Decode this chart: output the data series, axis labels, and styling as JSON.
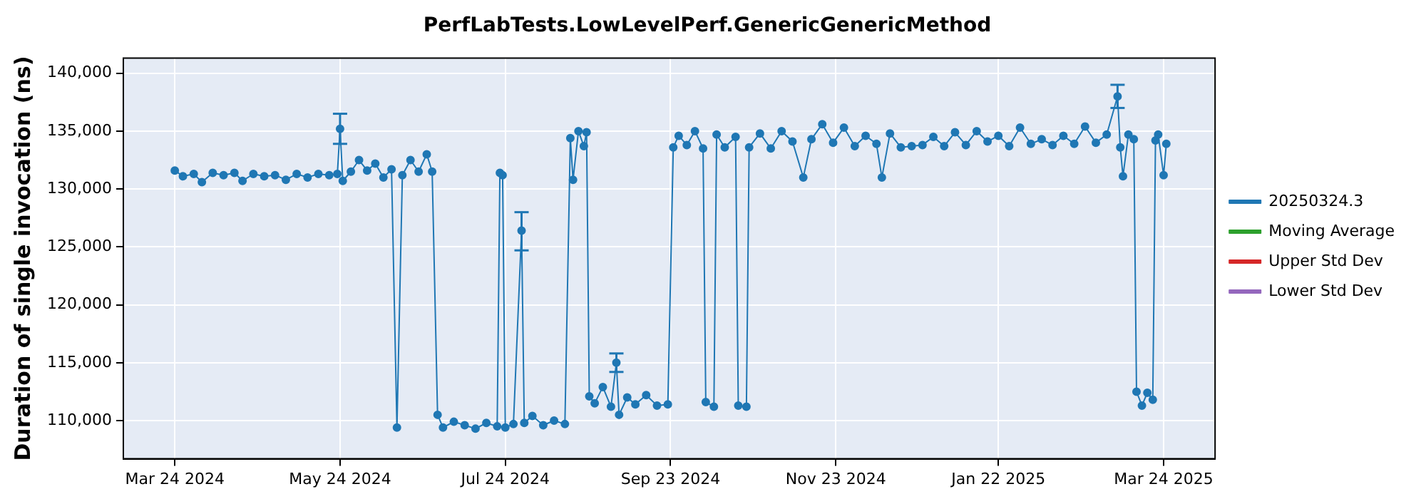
{
  "chart_data": {
    "type": "line",
    "title": "PerfLabTests.LowLevelPerf.GenericGenericMethod",
    "ylabel": "Duration of single invocation (ns)",
    "xlim": [
      "2024-03-05",
      "2025-04-12"
    ],
    "xticks": [
      {
        "value": "2024-03-24",
        "label": "Mar 24 2024"
      },
      {
        "value": "2024-05-24",
        "label": "May 24 2024"
      },
      {
        "value": "2024-07-24",
        "label": "Jul 24 2024"
      },
      {
        "value": "2024-09-23",
        "label": "Sep 23 2024"
      },
      {
        "value": "2024-11-23",
        "label": "Nov 23 2024"
      },
      {
        "value": "2025-01-22",
        "label": "Jan 22 2025"
      },
      {
        "value": "2025-03-24",
        "label": "Mar 24 2025"
      }
    ],
    "ylim": [
      106700,
      141300
    ],
    "yticks": [
      {
        "value": 110000,
        "label": "110,000"
      },
      {
        "value": 115000,
        "label": "115,000"
      },
      {
        "value": 120000,
        "label": "120,000"
      },
      {
        "value": 125000,
        "label": "125,000"
      },
      {
        "value": 130000,
        "label": "130,000"
      },
      {
        "value": 135000,
        "label": "135,000"
      },
      {
        "value": 140000,
        "label": "140,000"
      }
    ],
    "grid": true,
    "legend": "right",
    "marker": "circle",
    "line_style": "solid",
    "series": [
      {
        "name": "20250324.3",
        "color": "#1f77b4",
        "x": [
          "2024-03-24",
          "2024-03-27",
          "2024-03-31",
          "2024-04-03",
          "2024-04-07",
          "2024-04-11",
          "2024-04-15",
          "2024-04-18",
          "2024-04-22",
          "2024-04-26",
          "2024-04-30",
          "2024-05-04",
          "2024-05-08",
          "2024-05-12",
          "2024-05-16",
          "2024-05-20",
          "2024-05-23",
          "2024-05-24",
          "2024-05-25",
          "2024-05-28",
          "2024-05-31",
          "2024-06-03",
          "2024-06-06",
          "2024-06-09",
          "2024-06-12",
          "2024-06-14",
          "2024-06-16",
          "2024-06-19",
          "2024-06-22",
          "2024-06-25",
          "2024-06-27",
          "2024-06-29",
          "2024-07-01",
          "2024-07-05",
          "2024-07-09",
          "2024-07-13",
          "2024-07-17",
          "2024-07-21",
          "2024-07-22",
          "2024-07-23",
          "2024-07-24",
          "2024-07-27",
          "2024-07-30",
          "2024-07-31",
          "2024-08-03",
          "2024-08-07",
          "2024-08-11",
          "2024-08-15",
          "2024-08-17",
          "2024-08-18",
          "2024-08-20",
          "2024-08-22",
          "2024-08-23",
          "2024-08-24",
          "2024-08-26",
          "2024-08-29",
          "2024-09-01",
          "2024-09-03",
          "2024-09-04",
          "2024-09-07",
          "2024-09-10",
          "2024-09-14",
          "2024-09-18",
          "2024-09-22",
          "2024-09-24",
          "2024-09-26",
          "2024-09-29",
          "2024-10-02",
          "2024-10-05",
          "2024-10-06",
          "2024-10-09",
          "2024-10-10",
          "2024-10-13",
          "2024-10-17",
          "2024-10-18",
          "2024-10-21",
          "2024-10-22",
          "2024-10-26",
          "2024-10-30",
          "2024-11-03",
          "2024-11-07",
          "2024-11-11",
          "2024-11-14",
          "2024-11-18",
          "2024-11-22",
          "2024-11-26",
          "2024-11-30",
          "2024-12-04",
          "2024-12-08",
          "2024-12-10",
          "2024-12-13",
          "2024-12-17",
          "2024-12-21",
          "2024-12-25",
          "2024-12-29",
          "2025-01-02",
          "2025-01-06",
          "2025-01-10",
          "2025-01-14",
          "2025-01-18",
          "2025-01-22",
          "2025-01-26",
          "2025-01-30",
          "2025-02-03",
          "2025-02-07",
          "2025-02-11",
          "2025-02-15",
          "2025-02-19",
          "2025-02-23",
          "2025-02-27",
          "2025-03-03",
          "2025-03-07",
          "2025-03-08",
          "2025-03-09",
          "2025-03-11",
          "2025-03-13",
          "2025-03-14",
          "2025-03-16",
          "2025-03-18",
          "2025-03-20",
          "2025-03-21",
          "2025-03-22",
          "2025-03-24",
          "2025-03-25"
        ],
        "values": [
          131600,
          131100,
          131300,
          130600,
          131400,
          131200,
          131400,
          130700,
          131300,
          131100,
          131200,
          130800,
          131300,
          131000,
          131300,
          131200,
          131300,
          135200,
          130700,
          131500,
          132500,
          131600,
          132200,
          131000,
          131700,
          109400,
          131200,
          132500,
          131500,
          133000,
          131500,
          110500,
          109400,
          109900,
          109600,
          109300,
          109800,
          109500,
          131400,
          131200,
          109400,
          109700,
          126400,
          109800,
          110400,
          109600,
          110000,
          109700,
          134400,
          130800,
          135000,
          133700,
          134900,
          112100,
          111500,
          112900,
          111200,
          115000,
          110500,
          112000,
          111400,
          112200,
          111300,
          111400,
          133600,
          134600,
          133800,
          135000,
          133500,
          111600,
          111200,
          134700,
          133600,
          134500,
          111300,
          111200,
          133600,
          134800,
          133500,
          135000,
          134100,
          131000,
          134300,
          135600,
          134000,
          135300,
          133700,
          134600,
          133900,
          131000,
          134800,
          133600,
          133700,
          133800,
          134500,
          133700,
          134900,
          133800,
          135000,
          134100,
          134600,
          133700,
          135300,
          133900,
          134300,
          133800,
          134600,
          133900,
          135400,
          134000,
          134700,
          138000,
          133600,
          131100,
          134700,
          134300,
          112500,
          111300,
          112400,
          111800,
          134200,
          134700,
          131200,
          133900
        ],
        "errors": [
          null,
          null,
          null,
          null,
          null,
          null,
          null,
          null,
          null,
          null,
          null,
          null,
          null,
          null,
          null,
          null,
          null,
          [
            133900,
            136500
          ],
          null,
          null,
          null,
          null,
          null,
          null,
          null,
          null,
          null,
          null,
          null,
          null,
          null,
          null,
          null,
          null,
          null,
          null,
          null,
          null,
          null,
          null,
          null,
          null,
          [
            124700,
            128000
          ],
          null,
          null,
          null,
          null,
          null,
          null,
          null,
          null,
          null,
          null,
          null,
          null,
          null,
          null,
          [
            114200,
            115800
          ],
          null,
          null,
          null,
          null,
          null,
          null,
          null,
          null,
          null,
          null,
          null,
          null,
          null,
          null,
          null,
          null,
          null,
          null,
          null,
          null,
          null,
          null,
          null,
          null,
          null,
          null,
          null,
          null,
          null,
          null,
          null,
          null,
          null,
          null,
          null,
          null,
          null,
          null,
          null,
          null,
          null,
          null,
          null,
          null,
          null,
          null,
          null,
          null,
          null,
          null,
          null,
          null,
          null,
          [
            137000,
            139000
          ],
          null,
          null,
          null,
          null,
          null,
          null,
          null,
          null,
          null,
          null,
          null,
          null
        ]
      },
      {
        "name": "Moving Average",
        "color": "#2ca02c"
      },
      {
        "name": "Upper Std Dev",
        "color": "#d62728"
      },
      {
        "name": "Lower Std Dev",
        "color": "#9467bd"
      }
    ]
  }
}
